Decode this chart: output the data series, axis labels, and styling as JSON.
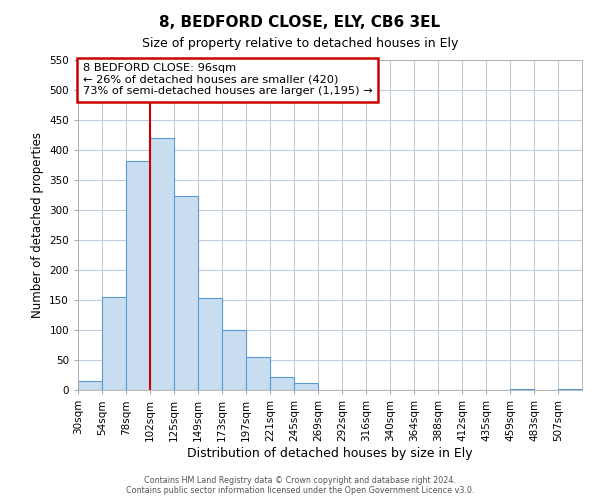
{
  "title": "8, BEDFORD CLOSE, ELY, CB6 3EL",
  "subtitle": "Size of property relative to detached houses in Ely",
  "xlabel": "Distribution of detached houses by size in Ely",
  "ylabel": "Number of detached properties",
  "bin_labels": [
    "30sqm",
    "54sqm",
    "78sqm",
    "102sqm",
    "125sqm",
    "149sqm",
    "173sqm",
    "197sqm",
    "221sqm",
    "245sqm",
    "269sqm",
    "292sqm",
    "316sqm",
    "340sqm",
    "364sqm",
    "388sqm",
    "412sqm",
    "435sqm",
    "459sqm",
    "483sqm",
    "507sqm"
  ],
  "bar_heights": [
    15,
    155,
    382,
    420,
    323,
    153,
    100,
    55,
    22,
    12,
    0,
    0,
    0,
    0,
    0,
    0,
    0,
    0,
    2,
    0,
    2
  ],
  "bar_color": "#c9ddf0",
  "bar_edge_color": "#5b9bd5",
  "vline_x_index": 3,
  "vline_color": "#cc0000",
  "annotation_title": "8 BEDFORD CLOSE: 96sqm",
  "annotation_line1": "← 26% of detached houses are smaller (420)",
  "annotation_line2": "73% of semi-detached houses are larger (1,195) →",
  "annotation_box_color": "#ffffff",
  "annotation_box_edge": "#cc0000",
  "ylim": [
    0,
    550
  ],
  "yticks": [
    0,
    50,
    100,
    150,
    200,
    250,
    300,
    350,
    400,
    450,
    500,
    550
  ],
  "footer1": "Contains HM Land Registry data © Crown copyright and database right 2024.",
  "footer2": "Contains public sector information licensed under the Open Government Licence v3.0.",
  "background_color": "#ffffff",
  "grid_color": "#c0cfe0"
}
